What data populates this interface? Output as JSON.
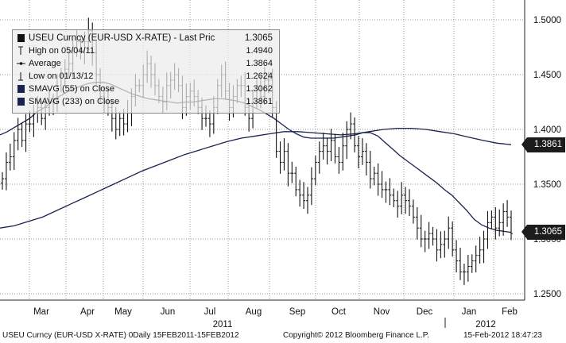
{
  "legend": {
    "title_ticker": "USEU Curncy",
    "title_desc": "(EUR-USD X-RATE) - Last Pric",
    "title_value": "1.3065",
    "rows": [
      {
        "label": "High on 05/04/11",
        "value": "1.4940"
      },
      {
        "label": "Average",
        "value": "1.3864"
      },
      {
        "label": "Low on 01/13/12",
        "value": "1.2624"
      },
      {
        "label": "SMAVG (55) on Close",
        "value": "1.3062"
      },
      {
        "label": "SMAVG (233) on Close",
        "value": "1.3861"
      }
    ]
  },
  "tags": {
    "sma233": "1.3861",
    "last": "1.3065"
  },
  "footer": {
    "left": "USEU Curncy (EUR-USD X-RATE) 0Daily 15FEB2011-15FEB2012",
    "center": "Copyright© 2012 Bloomberg Finance L.P.",
    "right": "15-Feb-2012 18:47:23"
  },
  "chart_data": {
    "type": "ohlc-bar",
    "y_ticks": [
      "1.2500",
      "1.3000",
      "1.3500",
      "1.4000",
      "1.4500",
      "1.5000"
    ],
    "ylim": [
      1.24,
      1.51
    ],
    "x_months": [
      "Mar",
      "Apr",
      "May",
      "Jun",
      "Jul",
      "Aug",
      "Sep",
      "Oct",
      "Nov",
      "Dec",
      "Jan",
      "Feb"
    ],
    "x_years": [
      "2011",
      "2012"
    ],
    "price_series_close": [
      1.355,
      1.37,
      1.375,
      1.39,
      1.4,
      1.39,
      1.405,
      1.405,
      1.415,
      1.42,
      1.41,
      1.42,
      1.425,
      1.425,
      1.44,
      1.45,
      1.455,
      1.46,
      1.475,
      1.48,
      1.47,
      1.48,
      1.49,
      1.47,
      1.45,
      1.43,
      1.425,
      1.42,
      1.41,
      1.4,
      1.41,
      1.405,
      1.415,
      1.43,
      1.44,
      1.44,
      1.45,
      1.46,
      1.45,
      1.44,
      1.43,
      1.425,
      1.44,
      1.445,
      1.45,
      1.44,
      1.42,
      1.43,
      1.435,
      1.43,
      1.42,
      1.41,
      1.41,
      1.405,
      1.42,
      1.44,
      1.45,
      1.435,
      1.42,
      1.43,
      1.44,
      1.44,
      1.42,
      1.41,
      1.425,
      1.44,
      1.43,
      1.445,
      1.445,
      1.42,
      1.38,
      1.37,
      1.38,
      1.36,
      1.36,
      1.345,
      1.34,
      1.335,
      1.34,
      1.355,
      1.37,
      1.38,
      1.385,
      1.38,
      1.39,
      1.375,
      1.37,
      1.385,
      1.4,
      1.405,
      1.385,
      1.375,
      1.38,
      1.37,
      1.355,
      1.36,
      1.35,
      1.345,
      1.345,
      1.34,
      1.335,
      1.33,
      1.34,
      1.335,
      1.33,
      1.32,
      1.31,
      1.3,
      1.3,
      1.305,
      1.3,
      1.29,
      1.295,
      1.3,
      1.31,
      1.29,
      1.28,
      1.27,
      1.27,
      1.275,
      1.28,
      1.285,
      1.29,
      1.3,
      1.315,
      1.32,
      1.31,
      1.315,
      1.325,
      1.32,
      1.305
    ],
    "sma55": [
      1.395,
      1.398,
      1.402,
      1.406,
      1.41,
      1.416,
      1.42,
      1.425,
      1.43,
      1.434,
      1.437,
      1.44,
      1.442,
      1.443,
      1.443,
      1.441,
      1.438,
      1.435,
      1.432,
      1.43,
      1.428,
      1.427,
      1.426,
      1.425,
      1.424,
      1.425,
      1.425,
      1.426,
      1.427,
      1.428,
      1.428,
      1.427,
      1.426,
      1.424,
      1.421,
      1.418,
      1.414,
      1.41,
      1.405,
      1.4,
      1.396,
      1.393,
      1.392,
      1.392,
      1.392,
      1.392,
      1.393,
      1.394,
      1.395,
      1.397,
      1.397,
      1.394,
      1.388,
      1.382,
      1.376,
      1.371,
      1.366,
      1.361,
      1.356,
      1.351,
      1.345,
      1.34,
      1.333,
      1.326,
      1.318,
      1.313,
      1.31,
      1.308,
      1.307,
      1.306
    ],
    "sma233": [
      1.31,
      1.312,
      1.316,
      1.32,
      1.326,
      1.332,
      1.338,
      1.344,
      1.35,
      1.356,
      1.362,
      1.367,
      1.372,
      1.377,
      1.381,
      1.385,
      1.389,
      1.392,
      1.394,
      1.396,
      1.398,
      1.398,
      1.397,
      1.396,
      1.395,
      1.396,
      1.398,
      1.4,
      1.401,
      1.401,
      1.4,
      1.398,
      1.396,
      1.393,
      1.39,
      1.3875,
      1.3861
    ]
  }
}
